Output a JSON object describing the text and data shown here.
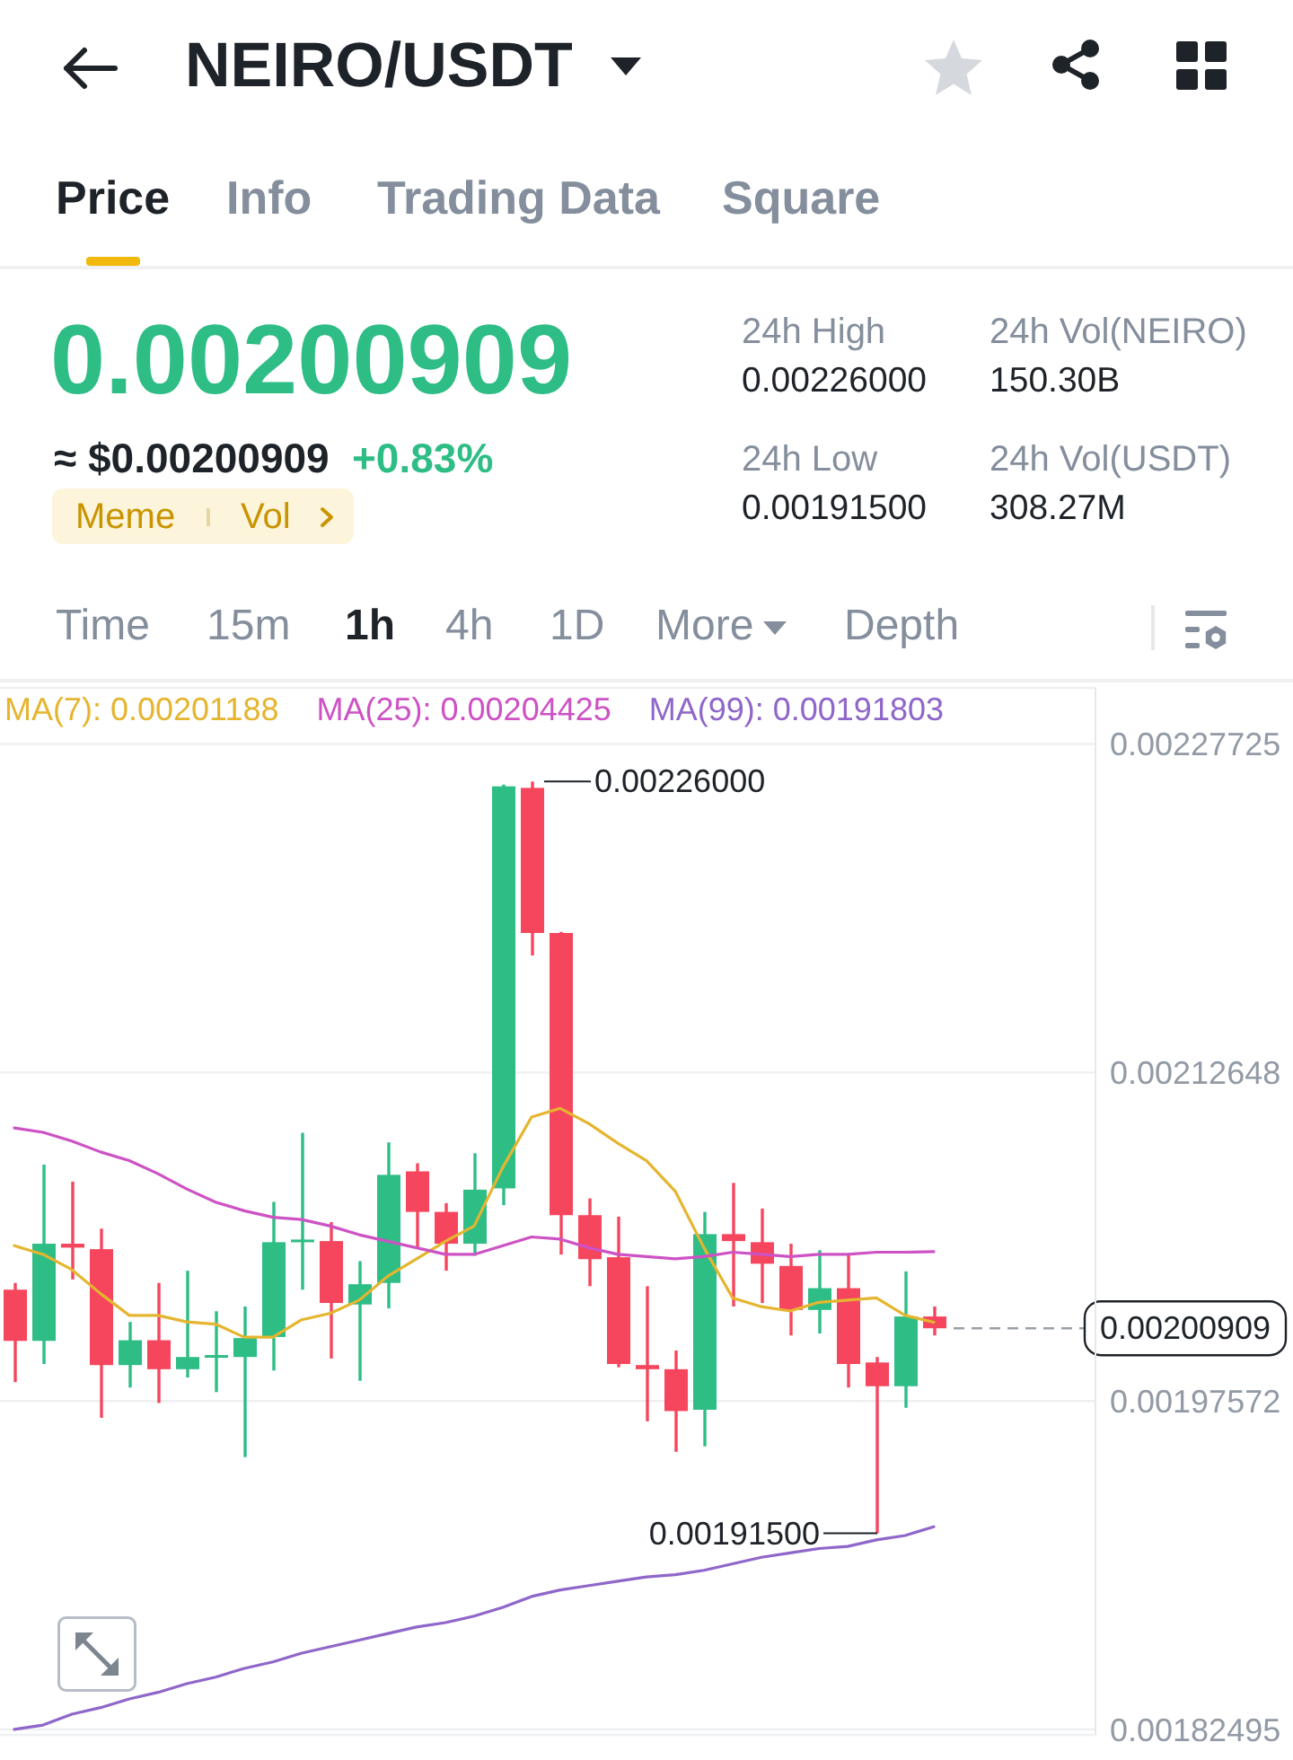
{
  "chart_data": {
    "type": "candlestick",
    "title": "NEIRO/USDT",
    "annotations": [
      "Price",
      "Info",
      "Trading Data",
      "Square",
      "0.00200909",
      "≈ $0.00200909",
      "+0.83%",
      "Meme",
      "Vol",
      "24h High",
      "0.00226000",
      "24h Vol(NEIRO)",
      "150.30B",
      "24h Low",
      "0.00191500",
      "24h Vol(USDT)",
      "308.27M",
      "Time",
      "15m",
      "1h",
      "4h",
      "1D",
      "More",
      "Depth",
      "0.00226000",
      "0.00191500"
    ],
    "categories": [
      null,
      null,
      null,
      null,
      null,
      null,
      null,
      null,
      null,
      null,
      null,
      null,
      null,
      null,
      null,
      null,
      null,
      null,
      null,
      null,
      null,
      null,
      null,
      null,
      null,
      null,
      null,
      null,
      null,
      null,
      null,
      null,
      null
    ],
    "ohlc": [
      [
        0.0020268,
        0.0020299,
        0.0019844,
        0.0020033
      ],
      [
        0.0020033,
        0.0020842,
        0.0019927,
        0.0020479
      ],
      [
        0.0020479,
        0.0020764,
        0.0020315,
        0.0020461
      ],
      [
        0.0020454,
        0.0020548,
        0.001968,
        0.0019922
      ],
      [
        0.0019922,
        0.002012,
        0.0019819,
        0.0020036
      ],
      [
        0.0020036,
        0.0020299,
        0.0019748,
        0.0019903
      ],
      [
        0.0019903,
        0.0020355,
        0.0019865,
        0.0019959
      ],
      [
        0.0019959,
        0.0020169,
        0.0019798,
        0.0019968
      ],
      [
        0.0019959,
        0.0020191,
        0.00195,
        0.0020046
      ],
      [
        0.0020051,
        0.0020671,
        0.0019897,
        0.0020486
      ],
      [
        0.0020486,
        0.0020988,
        0.0020268,
        0.0020498
      ],
      [
        0.0020491,
        0.0020578,
        0.0019952,
        0.0020207
      ],
      [
        0.00202,
        0.0020399,
        0.001985,
        0.0020293
      ],
      [
        0.0020299,
        0.0020944,
        0.0020182,
        0.0020795
      ],
      [
        0.0020811,
        0.0020848,
        0.0020461,
        0.0020625
      ],
      [
        0.0020625,
        0.0020665,
        0.0020355,
        0.0020479
      ],
      [
        0.0020479,
        0.0020894,
        0.0020424,
        0.0020727
      ],
      [
        0.0020733,
        0.0022586,
        0.0020656,
        0.0022578
      ],
      [
        0.0022571,
        0.00226,
        0.0021802,
        0.0021905
      ],
      [
        0.0021905,
        0.002191,
        0.0020429,
        0.002061
      ],
      [
        0.002061,
        0.0020687,
        0.0020284,
        0.0020408
      ],
      [
        0.0020417,
        0.0020603,
        0.0019912,
        0.0019927
      ],
      [
        0.0019922,
        0.0020284,
        0.0019664,
        0.0019903
      ],
      [
        0.0019903,
        0.0019989,
        0.0019524,
        0.0019711
      ],
      [
        0.0019717,
        0.0020625,
        0.0019549,
        0.0020523
      ],
      [
        0.0020523,
        0.0020758,
        0.0020191,
        0.0020491
      ],
      [
        0.0020486,
        0.002064,
        0.0020207,
        0.0020387
      ],
      [
        0.0020377,
        0.0020479,
        0.0020058,
        0.0020175
      ],
      [
        0.0020175,
        0.0020449,
        0.0020067,
        0.0020275
      ],
      [
        0.0020275,
        0.0020429,
        0.0019819,
        0.0019927
      ],
      [
        0.0019934,
        0.0019959,
        0.001915,
        0.0019825
      ],
      [
        0.0019825,
        0.0020352,
        0.0019726,
        0.0020145
      ],
      [
        0.0020145,
        0.0020191,
        0.0020058,
        0.00200909
      ]
    ],
    "colors": [
      "#f6465d",
      "#2ebd85",
      "#f6465d",
      "#f6465d",
      "#2ebd85",
      "#f6465d",
      "#2ebd85",
      "#2ebd85",
      "#2ebd85",
      "#2ebd85",
      "#2ebd85",
      "#f6465d",
      "#2ebd85",
      "#2ebd85",
      "#f6465d",
      "#f6465d",
      "#2ebd85",
      "#2ebd85",
      "#f6465d",
      "#f6465d",
      "#f6465d",
      "#f6465d",
      "#f6465d",
      "#f6465d",
      "#2ebd85",
      "#f6465d",
      "#f6465d",
      "#f6465d",
      "#2ebd85",
      "#f6465d",
      "#f6465d",
      "#2ebd85",
      "#f6465d"
    ],
    "series": [
      {
        "name": "MA(7): 0.00201188",
        "type": "line",
        "color": "#e5b52f",
        "values": [
          0.002047,
          0.002043,
          0.002036,
          0.002025,
          0.002015,
          0.002015,
          0.002012,
          0.002011,
          0.002005,
          0.002005,
          0.002013,
          0.002016,
          0.002022,
          0.002033,
          0.002041,
          0.002049,
          0.002056,
          0.002083,
          0.002106,
          0.00211,
          0.002103,
          0.002094,
          0.002086,
          0.002072,
          0.002046,
          0.002023,
          0.002019,
          0.002017,
          0.002021,
          0.002022,
          0.002023,
          0.002015,
          0.00201188
        ]
      },
      {
        "name": "MA(25): 0.00204425",
        "type": "line",
        "color": "#cd52c4",
        "values": [
          0.002101,
          0.002099,
          0.002095,
          0.00209,
          0.002086,
          0.00208,
          0.002073,
          0.002067,
          0.002063,
          0.00206,
          0.002059,
          0.002056,
          0.002052,
          0.002049,
          0.002046,
          0.002043,
          0.002043,
          0.002047,
          0.002051,
          0.00205,
          0.002046,
          0.002043,
          0.002042,
          0.002041,
          0.002042,
          0.002044,
          0.002043,
          0.002042,
          0.002043,
          0.002043,
          0.002044,
          0.002044,
          0.00204425
        ]
      },
      {
        "name": "MA(99): 0.00191803",
        "type": "line",
        "color": "#8f66c9",
        "values": [
          0.001825,
          0.001827,
          0.001832,
          0.001835,
          0.001839,
          0.001842,
          0.001846,
          0.001849,
          0.001853,
          0.001856,
          0.00186,
          0.001863,
          0.001866,
          0.001869,
          0.001872,
          0.001874,
          0.001877,
          0.001881,
          0.001886,
          0.001889,
          0.001891,
          0.001893,
          0.001895,
          0.001896,
          0.001898,
          0.001901,
          0.001904,
          0.001906,
          0.001908,
          0.001909,
          0.001912,
          0.001914,
          0.00191803
        ]
      }
    ],
    "ylim": [
      0.0018225,
      0.002303
    ],
    "yticks": [
      0.00182495,
      0.00197572,
      0.00212648,
      0.00227725
    ],
    "grid": "y",
    "legend": "top",
    "tick_labels": "y",
    "ref_lines": [
      {
        "axis": "y",
        "value": 0.00200909,
        "label": "0.00200909",
        "color": "#9aa0a8",
        "line_style": "dashed"
      }
    ]
  }
}
